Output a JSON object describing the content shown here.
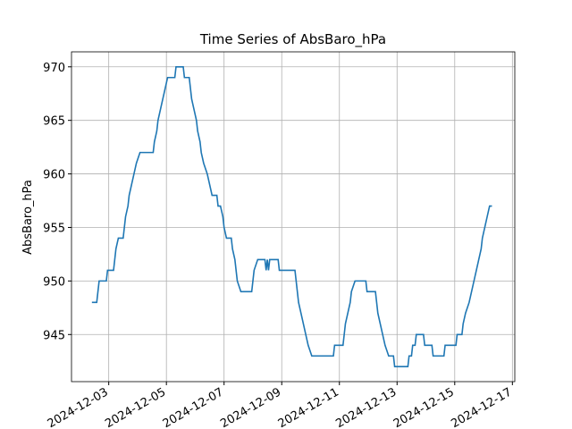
{
  "chart_data": {
    "type": "line",
    "title": "Time Series of AbsBaro_hPa",
    "ylabel": "AbsBaro_hPa",
    "series": [
      {
        "name": "AbsBaro_hPa",
        "color": "#1f77b4",
        "x": [
          "2024-12-02 10:00",
          "2024-12-02 14:00",
          "2024-12-02 15:00",
          "2024-12-02 16:00",
          "2024-12-02 22:00",
          "2024-12-02 23:00",
          "2024-12-03 04:00",
          "2024-12-03 05:00",
          "2024-12-03 06:00",
          "2024-12-03 08:00",
          "2024-12-03 12:00",
          "2024-12-03 13:00",
          "2024-12-03 14:00",
          "2024-12-03 16:00",
          "2024-12-03 17:00",
          "2024-12-03 19:00",
          "2024-12-03 21:00",
          "2024-12-03 23:00",
          "2024-12-04 02:00",
          "2024-12-04 13:00",
          "2024-12-04 14:00",
          "2024-12-04 16:00",
          "2024-12-04 17:00",
          "2024-12-04 19:00",
          "2024-12-04 21:00",
          "2024-12-04 23:00",
          "2024-12-05 01:00",
          "2024-12-05 07:00",
          "2024-12-05 08:00",
          "2024-12-05 14:00",
          "2024-12-05 15:00",
          "2024-12-05 19:00",
          "2024-12-05 20:00",
          "2024-12-05 21:00",
          "2024-12-05 23:00",
          "2024-12-06 01:00",
          "2024-12-06 02:00",
          "2024-12-06 04:00",
          "2024-12-06 05:00",
          "2024-12-06 07:00",
          "2024-12-06 10:00",
          "2024-12-06 12:00",
          "2024-12-06 14:00",
          "2024-12-06 18:00",
          "2024-12-06 19:00",
          "2024-12-06 21:00",
          "2024-12-06 23:00",
          "2024-12-07 00:00",
          "2024-12-07 02:00",
          "2024-12-07 06:00",
          "2024-12-07 07:00",
          "2024-12-07 09:00",
          "2024-12-07 10:00",
          "2024-12-07 11:00",
          "2024-12-07 14:00",
          "2024-12-07 23:00",
          "2024-12-08 00:00",
          "2024-12-08 01:00",
          "2024-12-08 04:00",
          "2024-12-08 10:00",
          "2024-12-08 11:00",
          "2024-12-08 12:00",
          "2024-12-08 13:00",
          "2024-12-08 14:00",
          "2024-12-08 21:00",
          "2024-12-08 22:00",
          "2024-12-09 11:00",
          "2024-12-09 12:00",
          "2024-12-09 13:00",
          "2024-12-09 14:00",
          "2024-12-09 16:00",
          "2024-12-09 18:00",
          "2024-12-09 20:00",
          "2024-12-09 22:00",
          "2024-12-10 01:00",
          "2024-12-10 19:00",
          "2024-12-10 20:00",
          "2024-12-11 03:00",
          "2024-12-11 04:00",
          "2024-12-11 05:00",
          "2024-12-11 07:00",
          "2024-12-11 09:00",
          "2024-12-11 10:00",
          "2024-12-11 13:00",
          "2024-12-11 22:00",
          "2024-12-11 23:00",
          "2024-12-12 06:00",
          "2024-12-12 07:00",
          "2024-12-12 08:00",
          "2024-12-12 10:00",
          "2024-12-12 12:00",
          "2024-12-12 14:00",
          "2024-12-12 17:00",
          "2024-12-12 21:00",
          "2024-12-12 22:00",
          "2024-12-13 09:00",
          "2024-12-13 10:00",
          "2024-12-13 12:00",
          "2024-12-13 13:00",
          "2024-12-13 15:00",
          "2024-12-13 16:00",
          "2024-12-13 22:00",
          "2024-12-13 23:00",
          "2024-12-14 05:00",
          "2024-12-14 06:00",
          "2024-12-14 15:00",
          "2024-12-14 16:00",
          "2024-12-15 01:00",
          "2024-12-15 02:00",
          "2024-12-15 06:00",
          "2024-12-15 07:00",
          "2024-12-15 09:00",
          "2024-12-15 12:00",
          "2024-12-15 14:00",
          "2024-12-15 16:00",
          "2024-12-15 18:00",
          "2024-12-15 20:00",
          "2024-12-15 22:00",
          "2024-12-15 23:00",
          "2024-12-16 01:00",
          "2024-12-16 03:00",
          "2024-12-16 05:00",
          "2024-12-16 07:00"
        ],
        "values": [
          948,
          948,
          949,
          950,
          950,
          951,
          951,
          952,
          953,
          954,
          954,
          955,
          956,
          957,
          958,
          959,
          960,
          961,
          962,
          962,
          963,
          964,
          965,
          966,
          967,
          968,
          969,
          969,
          970,
          970,
          969,
          969,
          968,
          967,
          966,
          965,
          964,
          963,
          962,
          961,
          960,
          959,
          958,
          958,
          957,
          957,
          956,
          955,
          954,
          954,
          953,
          952,
          951,
          950,
          949,
          949,
          950,
          951,
          952,
          952,
          951,
          952,
          951,
          952,
          952,
          951,
          951,
          950,
          949,
          948,
          947,
          946,
          945,
          944,
          943,
          943,
          944,
          944,
          945,
          946,
          947,
          948,
          949,
          950,
          950,
          949,
          949,
          948,
          947,
          946,
          945,
          944,
          943,
          943,
          942,
          942,
          943,
          943,
          944,
          944,
          945,
          945,
          944,
          944,
          943,
          943,
          944,
          944,
          945,
          945,
          946,
          947,
          948,
          949,
          950,
          951,
          952,
          953,
          954,
          955,
          956,
          957,
          957
        ]
      }
    ],
    "xlim": [
      "2024-12-01 17:00",
      "2024-12-17 02:00"
    ],
    "xticks": [
      "2024-12-03",
      "2024-12-05",
      "2024-12-07",
      "2024-12-09",
      "2024-12-11",
      "2024-12-13",
      "2024-12-15",
      "2024-12-17"
    ],
    "ylim": [
      940.6,
      971.4
    ],
    "yticks": [
      945,
      950,
      955,
      960,
      965,
      970
    ],
    "grid": true
  }
}
